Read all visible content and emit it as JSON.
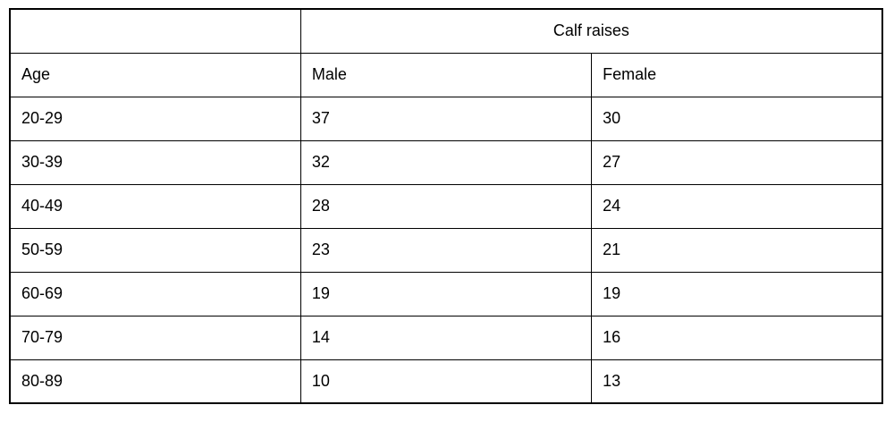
{
  "table": {
    "group_header": "Calf raises",
    "columns": [
      "Age",
      "Male",
      "Female"
    ],
    "rows": [
      {
        "age": "20-29",
        "male": "37",
        "female": "30"
      },
      {
        "age": "30-39",
        "male": "32",
        "female": "27"
      },
      {
        "age": "40-49",
        "male": "28",
        "female": "24"
      },
      {
        "age": "50-59",
        "male": "23",
        "female": "21"
      },
      {
        "age": "60-69",
        "male": "19",
        "female": "19"
      },
      {
        "age": "70-79",
        "male": "14",
        "female": "16"
      },
      {
        "age": "80-89",
        "male": "10",
        "female": "13"
      }
    ],
    "colors": {
      "border": "#000000",
      "text": "#000000",
      "background": "#ffffff"
    }
  },
  "chart_data": {
    "type": "table",
    "title": "Calf raises",
    "categories": [
      "20-29",
      "30-39",
      "40-49",
      "50-59",
      "60-69",
      "70-79",
      "80-89"
    ],
    "series": [
      {
        "name": "Male",
        "values": [
          37,
          32,
          28,
          23,
          19,
          14,
          10
        ]
      },
      {
        "name": "Female",
        "values": [
          30,
          27,
          24,
          21,
          19,
          16,
          13
        ]
      }
    ]
  }
}
